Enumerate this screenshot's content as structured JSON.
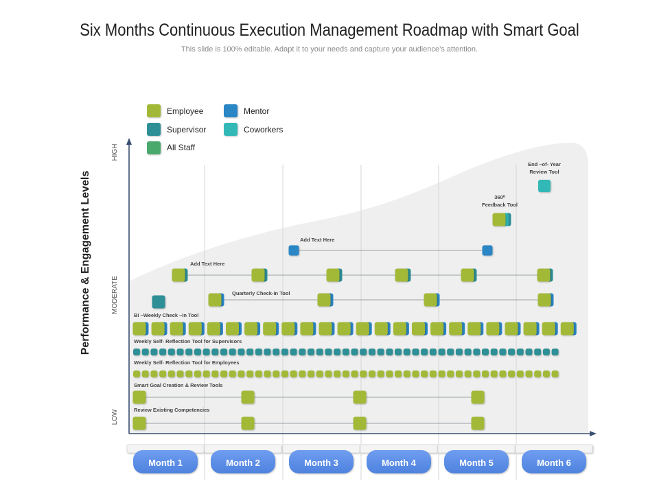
{
  "title": "Six Months Continuous Execution Management Roadmap with Smart Goal",
  "subtitle": "This slide is 100% editable. Adapt it to your needs and capture your audience’s attention.",
  "colors": {
    "employee": "#a2b938",
    "supervisor": "#2e8f96",
    "mentor": "#2b86c5",
    "coworkers": "#30b8b6",
    "all_staff": "#4aa96c",
    "month_tab": "#5b8ee6",
    "area": "#efefef",
    "axis": "#3a5070"
  },
  "legend": [
    {
      "key": "employee",
      "label": "Employee"
    },
    {
      "key": "mentor",
      "label": "Mentor"
    },
    {
      "key": "supervisor",
      "label": "Supervisor"
    },
    {
      "key": "coworkers",
      "label": "Coworkers"
    },
    {
      "key": "all_staff",
      "label": "All Staff"
    }
  ],
  "y_axis": {
    "title": "Performance & Engagement Levels",
    "levels": [
      "LOW",
      "MODERATE",
      "HIGH"
    ]
  },
  "months": [
    "Month 1",
    "Month 2",
    "Month 3",
    "Month 4",
    "Month 5",
    "Month 6"
  ],
  "labels": {
    "end_year": [
      "End –of- Year",
      "Review Tool"
    ],
    "feedback": [
      "360⁰",
      "Feedback Tool"
    ],
    "add_text_1": "Add Text Here",
    "add_text_2": "Add Text Here",
    "quarterly": "Quarterly Check-In Tool",
    "biweekly": "Bi –Weekly Check –In Tool",
    "self_sup": "Weekly Self- Reflection Tool for Supervisors",
    "self_emp": "Weekly Self- Reflection Tool for Employees",
    "smart_goal": "Smart Goal Creation & Review Tools",
    "review": "Review Existing Competencies"
  }
}
